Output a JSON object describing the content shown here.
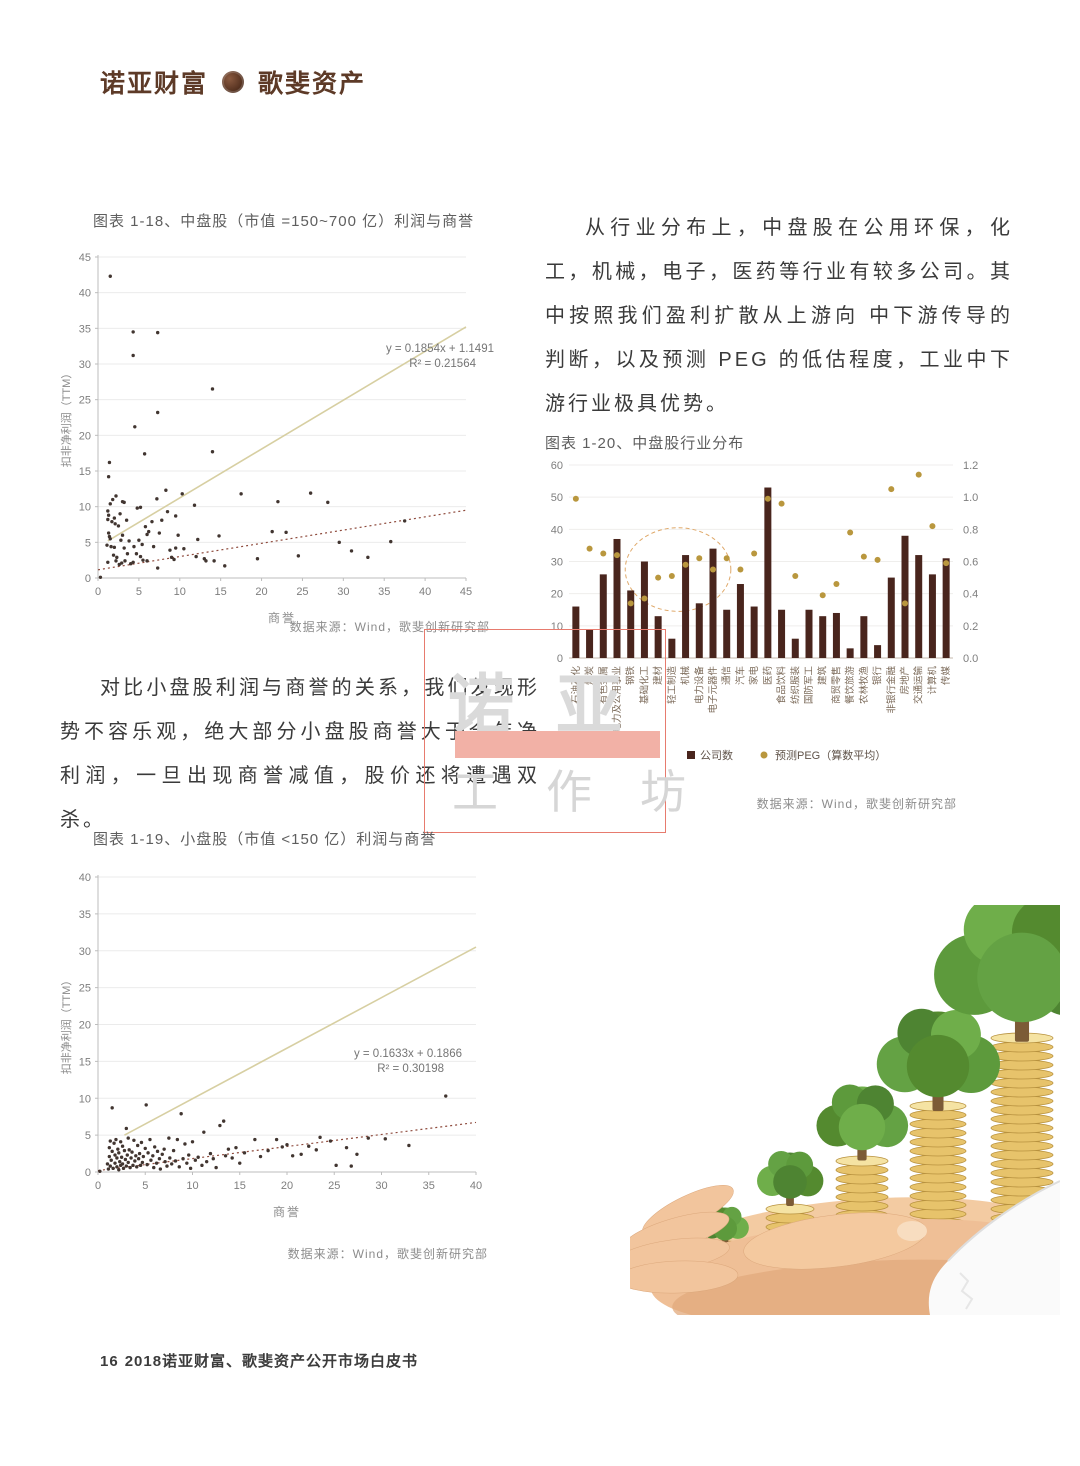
{
  "page": {
    "header": {
      "brand_left": "诺亚财富",
      "brand_right": "歌斐资产"
    },
    "watermark": {
      "line1": "诺亚",
      "line2": "工作坊"
    },
    "paragraphs": {
      "industry": "从行业分布上，中盘股在公用环保，化工，机械，电子，医药等行业有较多公司。其中按照我们盈利扩散从上游向 中下游传导的判断，以及预测 PEG 的低估程度，工业中下游行业极具优势。",
      "smallcap": "对比小盘股利润与商誉的关系，我们发现形势不容乐观，绝大部分小盘股商誉大于全年净利润，一旦出现商誉减值，股价还将遭遇双杀。"
    },
    "footer": {
      "page_number": "16",
      "text": "2018诺亚财富、歌斐资产公开市场白皮书"
    },
    "colors": {
      "brand_brown": "#5d3a27",
      "bar": "#49251d",
      "peg_dot": "#b9973e",
      "trend_solid": "#d7cfa2",
      "trend_dotted": "#8e4a3c",
      "watermark_red": "#e77b6e",
      "watermark_pink": "#f2b1a6"
    }
  },
  "chart_data": [
    {
      "type": "scatter",
      "title": "图表 1-18、中盘股（市值 =150~700 亿）利润与商誉",
      "xlabel": "商誉",
      "ylabel": "扣非净利润（TTM）",
      "xlim": [
        0,
        45
      ],
      "ylim": [
        0,
        45
      ],
      "xstep": 5,
      "ystep": 5,
      "equation": "y = 0.1854x + 1.1491",
      "r2": "R² = 0.21564",
      "trend_solid": [
        [
          1.2,
          5.2
        ],
        [
          45,
          35.2
        ]
      ],
      "trend_dotted": [
        [
          0,
          1.15
        ],
        [
          45,
          9.5
        ]
      ],
      "source": "数据来源：Wind，歌斐创新研究部",
      "points": [
        [
          0.3,
          0.1
        ],
        [
          1.1,
          4.6
        ],
        [
          1.2,
          9.4
        ],
        [
          1.2,
          8.2
        ],
        [
          1.2,
          2.2
        ],
        [
          1.3,
          14.2
        ],
        [
          1.3,
          8.8
        ],
        [
          1.3,
          6.3
        ],
        [
          1.4,
          16.2
        ],
        [
          1.4,
          5.8
        ],
        [
          1.5,
          42.3
        ],
        [
          1.5,
          10.4
        ],
        [
          1.5,
          5.5
        ],
        [
          1.6,
          4.4
        ],
        [
          1.7,
          7.9
        ],
        [
          1.8,
          11.0
        ],
        [
          1.9,
          3.2
        ],
        [
          2.0,
          8.4
        ],
        [
          2.0,
          4.3
        ],
        [
          2.1,
          7.6
        ],
        [
          2.2,
          11.5
        ],
        [
          2.2,
          2.4
        ],
        [
          2.3,
          2.9
        ],
        [
          2.5,
          7.3
        ],
        [
          2.6,
          1.9
        ],
        [
          2.7,
          9.0
        ],
        [
          2.8,
          5.3
        ],
        [
          2.9,
          2.1
        ],
        [
          3.0,
          6.0
        ],
        [
          3.0,
          10.7
        ],
        [
          3.2,
          10.6
        ],
        [
          3.2,
          4.2
        ],
        [
          3.3,
          2.4
        ],
        [
          3.5,
          8.1
        ],
        [
          3.6,
          3.4
        ],
        [
          3.8,
          5.2
        ],
        [
          4.0,
          2.0
        ],
        [
          4.3,
          34.5
        ],
        [
          4.3,
          31.2
        ],
        [
          4.3,
          2.2
        ],
        [
          4.4,
          4.4
        ],
        [
          4.5,
          21.2
        ],
        [
          4.7,
          3.4
        ],
        [
          4.8,
          9.8
        ],
        [
          5.0,
          5.3
        ],
        [
          5.2,
          9.9
        ],
        [
          5.2,
          3.0
        ],
        [
          5.4,
          4.7
        ],
        [
          5.5,
          2.5
        ],
        [
          5.7,
          17.4
        ],
        [
          5.8,
          7.2
        ],
        [
          6.0,
          2.4
        ],
        [
          6.0,
          6.1
        ],
        [
          6.2,
          6.5
        ],
        [
          6.6,
          7.9
        ],
        [
          6.8,
          4.4
        ],
        [
          7.2,
          11.1
        ],
        [
          7.3,
          34.4
        ],
        [
          7.3,
          23.2
        ],
        [
          7.3,
          1.4
        ],
        [
          7.5,
          6.3
        ],
        [
          7.8,
          8.1
        ],
        [
          8.3,
          12.3
        ],
        [
          8.5,
          9.3
        ],
        [
          8.8,
          3.9
        ],
        [
          9.0,
          2.9
        ],
        [
          9.3,
          2.6
        ],
        [
          9.5,
          8.7
        ],
        [
          9.5,
          4.2
        ],
        [
          9.8,
          6.0
        ],
        [
          10.3,
          11.8
        ],
        [
          10.5,
          4.1
        ],
        [
          11.8,
          10.2
        ],
        [
          12.0,
          3.0
        ],
        [
          12.2,
          5.4
        ],
        [
          13.0,
          2.7
        ],
        [
          13.2,
          2.4
        ],
        [
          14.0,
          26.5
        ],
        [
          14.0,
          17.7
        ],
        [
          14.2,
          2.4
        ],
        [
          14.8,
          5.9
        ],
        [
          15.5,
          1.7
        ],
        [
          17.5,
          11.8
        ],
        [
          19.5,
          2.7
        ],
        [
          21.3,
          6.5
        ],
        [
          22.0,
          10.7
        ],
        [
          23.0,
          6.4
        ],
        [
          24.5,
          3.1
        ],
        [
          26.0,
          11.9
        ],
        [
          28.1,
          10.6
        ],
        [
          29.5,
          5.0
        ],
        [
          31.0,
          3.8
        ],
        [
          33.0,
          2.9
        ],
        [
          35.8,
          5.1
        ],
        [
          37.5,
          8.0
        ]
      ]
    },
    {
      "type": "bar",
      "title": "图表 1-20、中盘股行业分布",
      "categories": [
        "石油石化",
        "煤炭",
        "有色金属",
        "电力及公用事业",
        "钢铁",
        "基础化工",
        "建材",
        "轻工制造",
        "机械",
        "电力设备",
        "电子元器件",
        "通信",
        "汽车",
        "家电",
        "医药",
        "食品饮料",
        "纺织服装",
        "国防军工",
        "建筑",
        "商贸零售",
        "餐饮旅游",
        "农林牧渔",
        "银行",
        "非银行金融",
        "房地产",
        "交通运输",
        "计算机",
        "传媒"
      ],
      "series": [
        {
          "name": "公司数",
          "axis": "left",
          "values": [
            16,
            9,
            26,
            37,
            21,
            30,
            13,
            6,
            32,
            17,
            34,
            15,
            23,
            16,
            53,
            15,
            6,
            15,
            13,
            14,
            3,
            13,
            4,
            25,
            38,
            32,
            26,
            31
          ]
        },
        {
          "name": "预测PEG（算数平均）",
          "axis": "right",
          "values": [
            0.99,
            0.68,
            0.65,
            0.64,
            0.34,
            0.37,
            0.5,
            0.51,
            0.58,
            0.62,
            0.55,
            0.62,
            0.55,
            0.65,
            0.99,
            0.96,
            0.51,
            null,
            0.39,
            0.46,
            0.78,
            0.63,
            0.61,
            1.05,
            0.34,
            1.14,
            0.82,
            0.59
          ]
        }
      ],
      "left_ylim": [
        0,
        60
      ],
      "left_step": 10,
      "right_ylim": [
        0,
        1.2
      ],
      "right_step": 0.2,
      "ellipse_note": {
        "ci": 7.45,
        "cv": 27.5,
        "rx_slots": 3.85,
        "ry_value": 13
      },
      "legend": [
        "公司数",
        "预测PEG（算数平均）"
      ],
      "source": "数据来源：Wind，歌斐创新研究部"
    },
    {
      "type": "scatter",
      "title": "图表 1-19、小盘股（市值 <150 亿）利润与商誉",
      "xlabel": "商誉",
      "ylabel": "扣非净利润（TTM）",
      "xlim": [
        0,
        40
      ],
      "ylim": [
        0,
        40
      ],
      "xstep": 5,
      "ystep": 5,
      "equation": "y = 0.1633x + 0.1866",
      "r2": "R² = 0.30198",
      "trend_solid": [
        [
          2.8,
          5.0
        ],
        [
          40,
          30.5
        ]
      ],
      "trend_dotted": [
        [
          0,
          0.19
        ],
        [
          40,
          6.72
        ]
      ],
      "source": "数据来源：Wind，歌斐创新研究部",
      "points": [
        [
          0.2,
          0.1
        ],
        [
          1.0,
          1.1
        ],
        [
          1.1,
          0.4
        ],
        [
          1.2,
          2.1
        ],
        [
          1.2,
          3.3
        ],
        [
          1.3,
          0.8
        ],
        [
          1.3,
          4.2
        ],
        [
          1.4,
          1.6
        ],
        [
          1.5,
          8.7
        ],
        [
          1.5,
          2.8
        ],
        [
          1.6,
          0.5
        ],
        [
          1.7,
          3.9
        ],
        [
          1.8,
          1.2
        ],
        [
          1.8,
          2.3
        ],
        [
          1.9,
          4.4
        ],
        [
          2.0,
          0.7
        ],
        [
          2.0,
          1.9
        ],
        [
          2.1,
          3.1
        ],
        [
          2.2,
          0.3
        ],
        [
          2.2,
          2.6
        ],
        [
          2.3,
          1.4
        ],
        [
          2.4,
          4.1
        ],
        [
          2.4,
          0.9
        ],
        [
          2.5,
          2.0
        ],
        [
          2.6,
          3.5
        ],
        [
          2.6,
          1.1
        ],
        [
          2.7,
          0.5
        ],
        [
          2.8,
          2.9
        ],
        [
          2.9,
          1.7
        ],
        [
          3.0,
          5.9
        ],
        [
          3.0,
          0.8
        ],
        [
          3.1,
          2.3
        ],
        [
          3.2,
          4.6
        ],
        [
          3.2,
          1.3
        ],
        [
          3.3,
          3.0
        ],
        [
          3.4,
          0.6
        ],
        [
          3.5,
          1.9
        ],
        [
          3.6,
          2.7
        ],
        [
          3.7,
          0.9
        ],
        [
          3.8,
          4.3
        ],
        [
          3.9,
          1.5
        ],
        [
          4.0,
          2.2
        ],
        [
          4.1,
          0.7
        ],
        [
          4.2,
          3.6
        ],
        [
          4.3,
          1.8
        ],
        [
          4.4,
          2.5
        ],
        [
          4.5,
          0.9
        ],
        [
          4.6,
          4.0
        ],
        [
          4.7,
          1.3
        ],
        [
          4.8,
          2.1
        ],
        [
          5.0,
          3.2
        ],
        [
          5.1,
          9.1
        ],
        [
          5.2,
          1.0
        ],
        [
          5.3,
          2.6
        ],
        [
          5.5,
          4.4
        ],
        [
          5.6,
          1.6
        ],
        [
          5.8,
          2.2
        ],
        [
          5.9,
          0.6
        ],
        [
          6.0,
          3.4
        ],
        [
          6.2,
          1.2
        ],
        [
          6.3,
          2.8
        ],
        [
          6.5,
          1.8
        ],
        [
          6.6,
          0.4
        ],
        [
          6.8,
          2.4
        ],
        [
          7.0,
          3.1
        ],
        [
          7.1,
          1.4
        ],
        [
          7.3,
          0.8
        ],
        [
          7.5,
          4.6
        ],
        [
          7.6,
          1.9
        ],
        [
          7.8,
          1.1
        ],
        [
          8.0,
          2.9
        ],
        [
          8.2,
          1.5
        ],
        [
          8.4,
          4.4
        ],
        [
          8.6,
          0.7
        ],
        [
          8.8,
          7.9
        ],
        [
          9.0,
          1.8
        ],
        [
          9.2,
          3.8
        ],
        [
          9.4,
          1.2
        ],
        [
          9.6,
          2.3
        ],
        [
          9.8,
          0.5
        ],
        [
          10.0,
          4.1
        ],
        [
          10.3,
          1.6
        ],
        [
          10.6,
          2.0
        ],
        [
          11.0,
          0.9
        ],
        [
          11.2,
          5.4
        ],
        [
          11.5,
          1.4
        ],
        [
          11.9,
          2.5
        ],
        [
          12.2,
          1.8
        ],
        [
          12.5,
          0.6
        ],
        [
          12.9,
          6.3
        ],
        [
          13.3,
          6.9
        ],
        [
          13.5,
          2.2
        ],
        [
          13.8,
          3.1
        ],
        [
          14.2,
          1.9
        ],
        [
          14.6,
          3.3
        ],
        [
          15.0,
          1.2
        ],
        [
          15.5,
          2.6
        ],
        [
          16.6,
          4.4
        ],
        [
          17.2,
          2.1
        ],
        [
          18.0,
          2.9
        ],
        [
          18.9,
          4.4
        ],
        [
          19.5,
          3.4
        ],
        [
          20.0,
          3.7
        ],
        [
          20.6,
          2.2
        ],
        [
          21.5,
          2.4
        ],
        [
          22.3,
          3.5
        ],
        [
          23.1,
          3.0
        ],
        [
          23.5,
          4.7
        ],
        [
          24.6,
          4.2
        ],
        [
          25.2,
          0.9
        ],
        [
          26.3,
          3.3
        ],
        [
          26.8,
          0.8
        ],
        [
          27.4,
          2.4
        ],
        [
          28.6,
          4.6
        ],
        [
          30.4,
          4.5
        ],
        [
          32.9,
          3.6
        ],
        [
          36.8,
          10.3
        ]
      ]
    }
  ]
}
